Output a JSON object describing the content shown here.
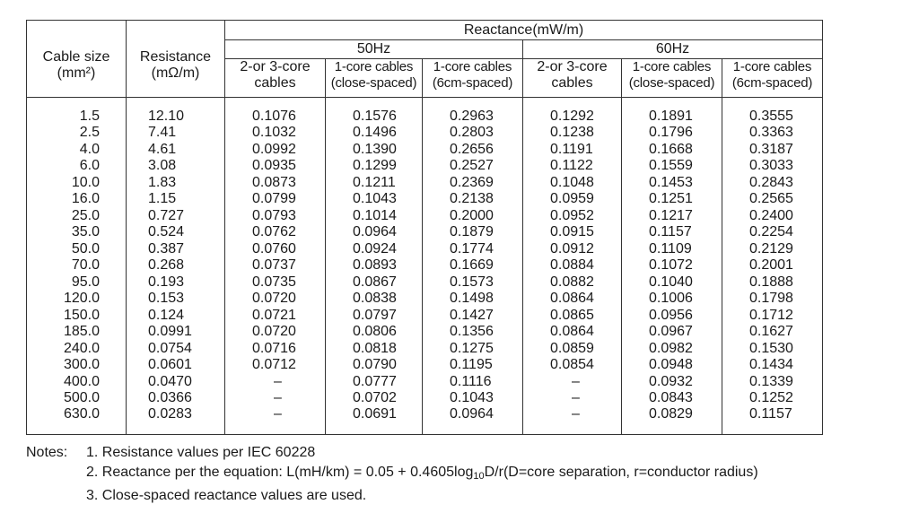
{
  "table": {
    "headers": {
      "cable_size": "Cable size",
      "cable_size_unit": "(mm²)",
      "resistance": "Resistance",
      "resistance_unit": "(mΩ/m)",
      "reactance": "Reactance(mW/m)",
      "freq_50": "50Hz",
      "freq_60": "60Hz",
      "sub_2or3_a": "2-or 3-core",
      "sub_2or3_b": "cables",
      "sub_close_a": "1-core cables",
      "sub_close_b": "(close-spaced)",
      "sub_6cm_a": "1-core cables",
      "sub_6cm_b": "(6cm-spaced)"
    },
    "rows": [
      [
        "1.5",
        "12.10",
        "0.1076",
        "0.1576",
        "0.2963",
        "0.1292",
        "0.1891",
        "0.3555"
      ],
      [
        "2.5",
        "7.41",
        "0.1032",
        "0.1496",
        "0.2803",
        "0.1238",
        "0.1796",
        "0.3363"
      ],
      [
        "4.0",
        "4.61",
        "0.0992",
        "0.1390",
        "0.2656",
        "0.1191",
        "0.1668",
        "0.3187"
      ],
      [
        "6.0",
        "3.08",
        "0.0935",
        "0.1299",
        "0.2527",
        "0.1122",
        "0.1559",
        "0.3033"
      ],
      [
        "10.0",
        "1.83",
        "0.0873",
        "0.1211",
        "0.2369",
        "0.1048",
        "0.1453",
        "0.2843"
      ],
      [
        "16.0",
        "1.15",
        "0.0799",
        "0.1043",
        "0.2138",
        "0.0959",
        "0.1251",
        "0.2565"
      ],
      [
        "25.0",
        "0.727",
        "0.0793",
        "0.1014",
        "0.2000",
        "0.0952",
        "0.1217",
        "0.2400"
      ],
      [
        "35.0",
        "0.524",
        "0.0762",
        "0.0964",
        "0.1879",
        "0.0915",
        "0.1157",
        "0.2254"
      ],
      [
        "50.0",
        "0.387",
        "0.0760",
        "0.0924",
        "0.1774",
        "0.0912",
        "0.1109",
        "0.2129"
      ],
      [
        "70.0",
        "0.268",
        "0.0737",
        "0.0893",
        "0.1669",
        "0.0884",
        "0.1072",
        "0.2001"
      ],
      [
        "95.0",
        "0.193",
        "0.0735",
        "0.0867",
        "0.1573",
        "0.0882",
        "0.1040",
        "0.1888"
      ],
      [
        "120.0",
        "0.153",
        "0.0720",
        "0.0838",
        "0.1498",
        "0.0864",
        "0.1006",
        "0.1798"
      ],
      [
        "150.0",
        "0.124",
        "0.0721",
        "0.0797",
        "0.1427",
        "0.0865",
        "0.0956",
        "0.1712"
      ],
      [
        "185.0",
        "0.0991",
        "0.0720",
        "0.0806",
        "0.1356",
        "0.0864",
        "0.0967",
        "0.1627"
      ],
      [
        "240.0",
        "0.0754",
        "0.0716",
        "0.0818",
        "0.1275",
        "0.0859",
        "0.0982",
        "0.1530"
      ],
      [
        "300.0",
        "0.0601",
        "0.0712",
        "0.0790",
        "0.1195",
        "0.0854",
        "0.0948",
        "0.1434"
      ],
      [
        "400.0",
        "0.0470",
        "–",
        "0.0777",
        "0.1116",
        "–",
        "0.0932",
        "0.1339"
      ],
      [
        "500.0",
        "0.0366",
        "–",
        "0.0702",
        "0.1043",
        "–",
        "0.0843",
        "0.1252"
      ],
      [
        "630.0",
        "0.0283",
        "–",
        "0.0691",
        "0.0964",
        "–",
        "0.0829",
        "0.1157"
      ]
    ]
  },
  "notes": {
    "label": "Notes:",
    "n1": "1. Resistance values per IEC 60228",
    "n2_pre": "2. Reactance per the equation: L(mH/km) = 0.05 + 0.4605log",
    "n2_sub": "10",
    "n2_post": "D/r(D=core separation, r=conductor radius)",
    "n3": "3. Close-spaced reactance values are used."
  }
}
